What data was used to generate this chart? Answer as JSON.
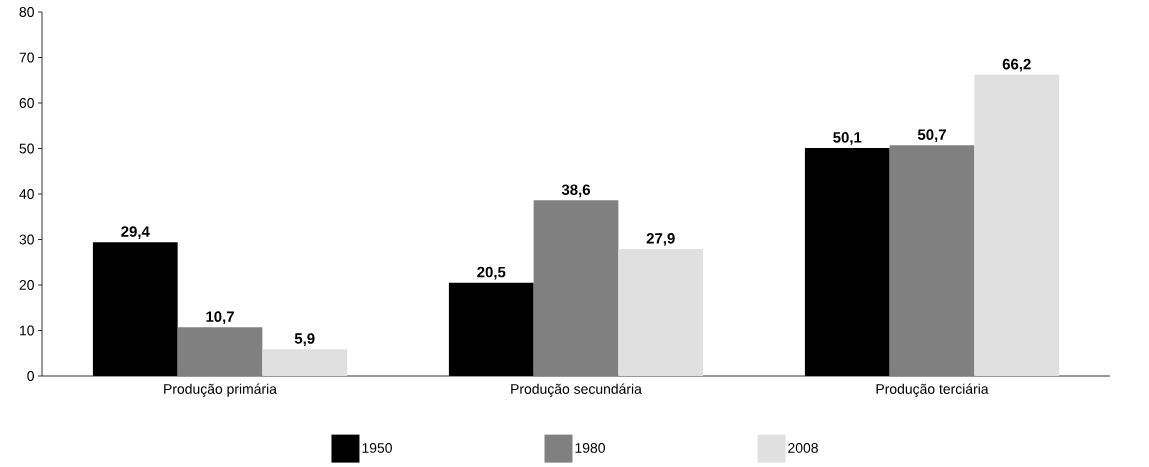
{
  "chart_data": {
    "type": "bar",
    "categories": [
      "Produção primária",
      "Produção secundária",
      "Produção terciária"
    ],
    "series": [
      {
        "name": "1950",
        "color": "#000000",
        "values": [
          29.4,
          20.5,
          50.1
        ],
        "value_labels": [
          "29,4",
          "20,5",
          "50,1"
        ]
      },
      {
        "name": "1980",
        "color": "#808080",
        "values": [
          10.7,
          38.6,
          50.7
        ],
        "value_labels": [
          "10,7",
          "38,6",
          "50,7"
        ]
      },
      {
        "name": "2008",
        "color": "#e0e0e0",
        "values": [
          5.9,
          27.9,
          66.2
        ],
        "value_labels": [
          "5,9",
          "27,9",
          "66,2"
        ]
      }
    ],
    "ylim": [
      0,
      80
    ],
    "yticks": [
      0,
      10,
      20,
      30,
      40,
      50,
      60,
      70,
      80
    ],
    "grid": false,
    "legend": "bottom"
  }
}
